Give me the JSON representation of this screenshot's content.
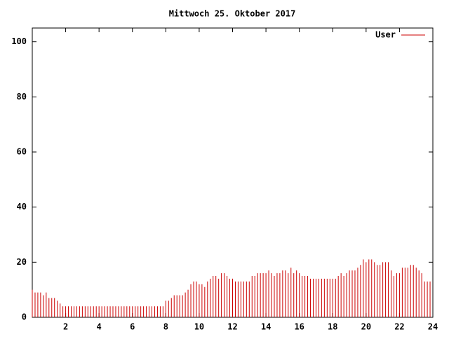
{
  "chart_data": {
    "type": "impulses",
    "title": "Mittwoch 25. Oktober 2017",
    "x": [
      0,
      0.167,
      0.333,
      0.5,
      0.667,
      0.833,
      1,
      1.167,
      1.333,
      1.5,
      1.667,
      1.833,
      2,
      2.167,
      2.333,
      2.5,
      2.667,
      2.833,
      3,
      3.167,
      3.333,
      3.5,
      3.667,
      3.833,
      4,
      4.167,
      4.333,
      4.5,
      4.667,
      4.833,
      5,
      5.167,
      5.333,
      5.5,
      5.667,
      5.833,
      6,
      6.167,
      6.333,
      6.5,
      6.667,
      6.833,
      7,
      7.167,
      7.333,
      7.5,
      7.667,
      7.833,
      8,
      8.167,
      8.333,
      8.5,
      8.667,
      8.833,
      9,
      9.167,
      9.333,
      9.5,
      9.667,
      9.833,
      10,
      10.167,
      10.333,
      10.5,
      10.667,
      10.833,
      11,
      11.167,
      11.333,
      11.5,
      11.667,
      11.833,
      12,
      12.167,
      12.333,
      12.5,
      12.667,
      12.833,
      13,
      13.167,
      13.333,
      13.5,
      13.667,
      13.833,
      14,
      14.167,
      14.333,
      14.5,
      14.667,
      14.833,
      15,
      15.167,
      15.333,
      15.5,
      15.667,
      15.833,
      16,
      16.167,
      16.333,
      16.5,
      16.667,
      16.833,
      17,
      17.167,
      17.333,
      17.5,
      17.667,
      17.833,
      18,
      18.167,
      18.333,
      18.5,
      18.667,
      18.833,
      19,
      19.167,
      19.333,
      19.5,
      19.667,
      19.833,
      20,
      20.167,
      20.333,
      20.5,
      20.667,
      20.833,
      21,
      21.167,
      21.333,
      21.5,
      21.667,
      21.833,
      22,
      22.167,
      22.333,
      22.5,
      22.667,
      22.833,
      23,
      23.167,
      23.333,
      23.5,
      23.667,
      23.833
    ],
    "series": [
      {
        "name": "User",
        "color": "#cc0000",
        "values": [
          10,
          9,
          9,
          9,
          8,
          9,
          7,
          7,
          7,
          6,
          5,
          4,
          4,
          4,
          4,
          4,
          4,
          4,
          4,
          4,
          4,
          4,
          4,
          4,
          4,
          4,
          4,
          4,
          4,
          4,
          4,
          4,
          4,
          4,
          4,
          4,
          4,
          4,
          4,
          4,
          4,
          4,
          4,
          4,
          4,
          4,
          4,
          4,
          6,
          6,
          7,
          8,
          8,
          8,
          8,
          9,
          10,
          12,
          13,
          13,
          12,
          12,
          11,
          13,
          14,
          15,
          15,
          14,
          16,
          16,
          15,
          14,
          14,
          13,
          13,
          13,
          13,
          13,
          13,
          15,
          15,
          16,
          16,
          16,
          16,
          17,
          16,
          15,
          16,
          16,
          17,
          17,
          16,
          18,
          16,
          17,
          16,
          15,
          15,
          15,
          14,
          14,
          14,
          14,
          14,
          14,
          14,
          14,
          14,
          14,
          15,
          16,
          15,
          16,
          17,
          17,
          17,
          18,
          19,
          21,
          20,
          21,
          21,
          20,
          19,
          19,
          20,
          20,
          20,
          17,
          15,
          16,
          16,
          18,
          18,
          18,
          19,
          19,
          18,
          17,
          16,
          13,
          13,
          13
        ]
      }
    ],
    "xlim": [
      0,
      24
    ],
    "xticks": [
      2,
      4,
      6,
      8,
      10,
      12,
      14,
      16,
      18,
      20,
      22,
      24
    ],
    "ylim": [
      0,
      105
    ],
    "yticks": [
      0,
      20,
      40,
      60,
      80,
      100
    ]
  }
}
